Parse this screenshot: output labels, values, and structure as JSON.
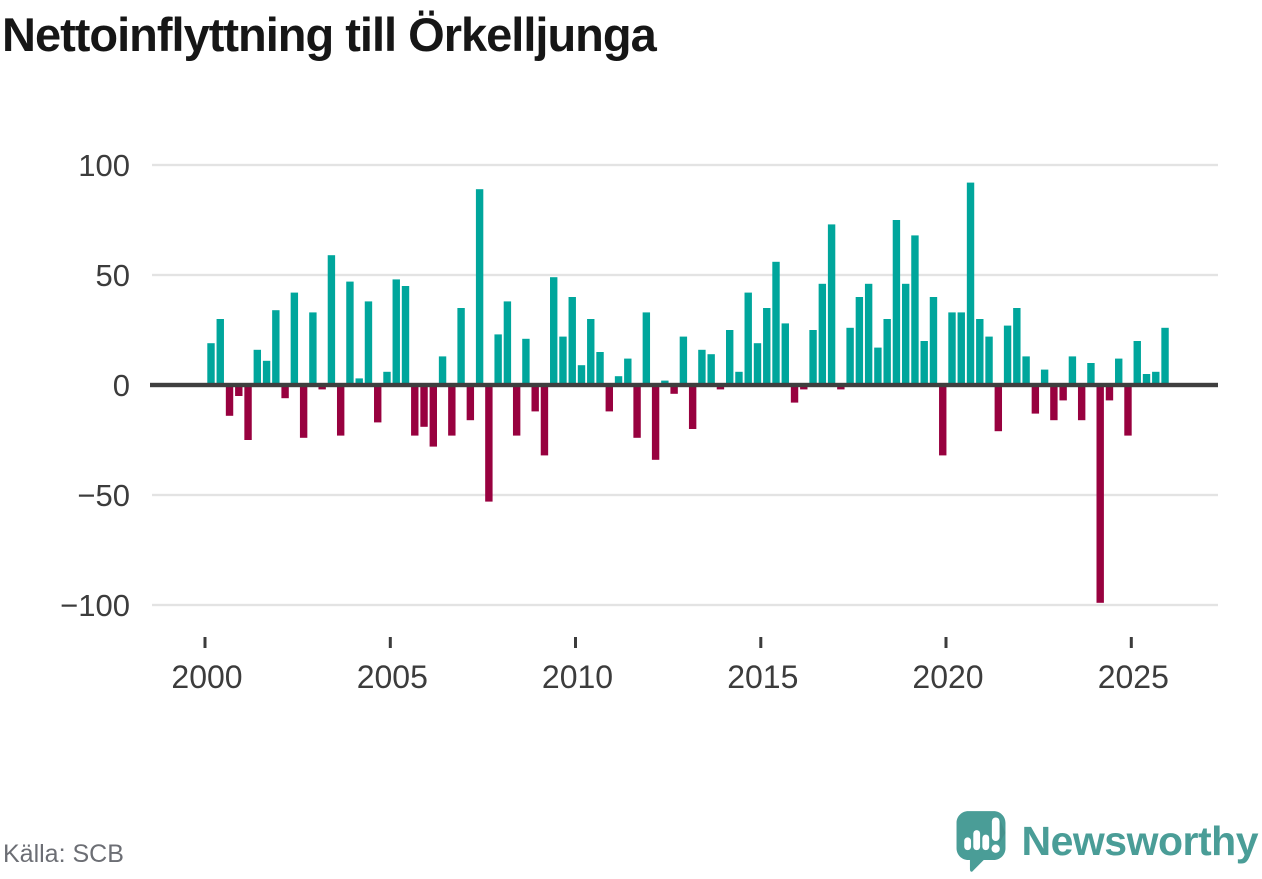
{
  "title": "Nettoinflyttning till Örkelljunga",
  "source_label": "Källa: SCB",
  "branding": {
    "logo_text": "Newsworthy",
    "logo_color": "#4A9D97"
  },
  "colors": {
    "positive": "#00A69C",
    "negative": "#98013F",
    "axis": "#3F3F3F",
    "gridline": "#E3E3E3",
    "tick": "#3C3C3C"
  },
  "chart_data": {
    "type": "bar",
    "title": "Nettoinflyttning till Örkelljunga",
    "xlabel": "",
    "ylabel": "",
    "ylim": [
      -105,
      105
    ],
    "grid": "horizontal",
    "legend": "none",
    "yticks": [
      100,
      50,
      0,
      -50,
      -100
    ],
    "ytick_labels": [
      "100",
      "50",
      "0",
      "−50",
      "−100"
    ],
    "xticks": [
      2000,
      2005,
      2010,
      2015,
      2020,
      2025
    ],
    "xtick_labels": [
      "2000",
      "2005",
      "2010",
      "2015",
      "2020",
      "2025"
    ],
    "categories": [
      "2000Q1",
      "2000Q2",
      "2000Q3",
      "2000Q4",
      "2001Q1",
      "2001Q2",
      "2001Q3",
      "2001Q4",
      "2002Q1",
      "2002Q2",
      "2002Q3",
      "2002Q4",
      "2003Q1",
      "2003Q2",
      "2003Q3",
      "2003Q4",
      "2004Q1",
      "2004Q2",
      "2004Q3",
      "2004Q4",
      "2005Q1",
      "2005Q2",
      "2005Q3",
      "2005Q4",
      "2006Q1",
      "2006Q2",
      "2006Q3",
      "2006Q4",
      "2007Q1",
      "2007Q2",
      "2007Q3",
      "2007Q4",
      "2008Q1",
      "2008Q2",
      "2008Q3",
      "2008Q4",
      "2009Q1",
      "2009Q2",
      "2009Q3",
      "2009Q4",
      "2010Q1",
      "2010Q2",
      "2010Q3",
      "2010Q4",
      "2011Q1",
      "2011Q2",
      "2011Q3",
      "2011Q4",
      "2012Q1",
      "2012Q2",
      "2012Q3",
      "2012Q4",
      "2013Q1",
      "2013Q2",
      "2013Q3",
      "2013Q4",
      "2014Q1",
      "2014Q2",
      "2014Q3",
      "2014Q4",
      "2015Q1",
      "2015Q2",
      "2015Q3",
      "2015Q4",
      "2016Q1",
      "2016Q2",
      "2016Q3",
      "2016Q4",
      "2017Q1",
      "2017Q2",
      "2017Q3",
      "2017Q4",
      "2018Q1",
      "2018Q2",
      "2018Q3",
      "2018Q4",
      "2019Q1",
      "2019Q2",
      "2019Q3",
      "2019Q4",
      "2020Q1",
      "2020Q2",
      "2020Q3",
      "2020Q4",
      "2021Q1",
      "2021Q2",
      "2021Q3",
      "2021Q4",
      "2022Q1",
      "2022Q2",
      "2022Q3",
      "2022Q4",
      "2023Q1",
      "2023Q2",
      "2023Q3",
      "2023Q4",
      "2024Q1",
      "2024Q2",
      "2024Q3",
      "2024Q4",
      "2025Q1",
      "2025Q2",
      "2025Q3",
      "2025Q4"
    ],
    "values": [
      19,
      30,
      -14,
      -5,
      -25,
      16,
      11,
      34,
      -6,
      42,
      -24,
      33,
      -2,
      59,
      -23,
      47,
      3,
      38,
      -17,
      6,
      48,
      45,
      -23,
      -19,
      -28,
      13,
      -23,
      35,
      -16,
      89,
      -53,
      23,
      38,
      -23,
      21,
      -12,
      -32,
      49,
      22,
      40,
      9,
      30,
      15,
      -12,
      4,
      12,
      -24,
      33,
      -34,
      2,
      -4,
      22,
      -20,
      16,
      14,
      -2,
      25,
      6,
      42,
      19,
      35,
      56,
      28,
      -8,
      -2,
      25,
      46,
      73,
      -2,
      26,
      40,
      46,
      17,
      30,
      75,
      46,
      68,
      20,
      40,
      -32,
      33,
      33,
      92,
      30,
      22,
      -21,
      27,
      35,
      13,
      -13,
      7,
      -16,
      -7,
      13,
      -16,
      10,
      -99,
      -7,
      12,
      -23,
      20,
      5,
      6,
      26
    ]
  }
}
